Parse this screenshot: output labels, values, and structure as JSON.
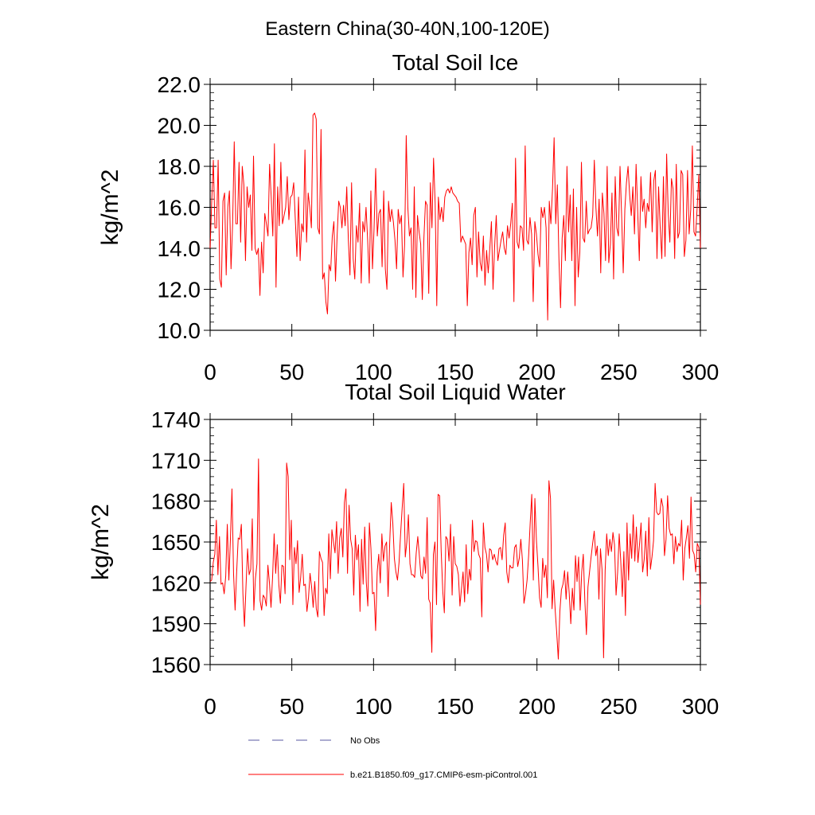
{
  "page_title": "Eastern China(30-40N,100-120E)",
  "chart_data": [
    {
      "type": "line",
      "title": "Total Soil Ice",
      "xlabel": "",
      "ylabel": "kg/m^2",
      "xlim": [
        0,
        300
      ],
      "ylim": [
        10,
        22
      ],
      "xticks": [
        0,
        50,
        100,
        150,
        200,
        250,
        300
      ],
      "xtick_labels": [
        "0",
        "50",
        "100",
        "150",
        "200",
        "250",
        "300"
      ],
      "yticks": [
        10,
        12,
        14,
        16,
        18,
        20,
        22
      ],
      "ytick_labels": [
        "10.0",
        "12.0",
        "14.0",
        "16.0",
        "18.0",
        "20.0",
        "22.0"
      ],
      "series": [
        {
          "name": "b.e21.B1850.f09_g17.CMIP6-esm-piControl.001",
          "color": "#ff0000",
          "values": [
            14.0,
            16.3,
            18.3,
            15.0,
            15.0,
            18.3,
            12.5,
            12.1,
            16.3,
            16.7,
            12.7,
            16.0,
            16.8,
            13.0,
            15.2,
            19.2,
            15.2,
            15.2,
            18.2,
            14.3,
            18.0,
            17.1,
            13.4,
            17.0,
            16.0,
            16.6,
            13.9,
            18.5,
            14.0,
            13.7,
            14.0,
            11.7,
            14.3,
            12.8,
            15.7,
            15.2,
            14.6,
            18.1,
            16.5,
            14.6,
            19.1,
            12.1,
            17.0,
            15.1,
            18.2,
            15.2,
            15.6,
            16.0,
            17.5,
            15.4,
            16.5,
            16.6,
            17.2,
            15.4,
            13.6,
            16.5,
            13.4,
            15.2,
            14.8,
            18.8,
            14.3,
            16.7,
            16.0,
            15.0,
            20.5,
            20.6,
            20.3,
            15.0,
            14.7,
            19.8,
            12.5,
            12.8,
            11.4,
            10.8,
            13.2,
            12.9,
            14.6,
            15.3,
            12.4,
            14.6,
            16.3,
            16.0,
            15.0,
            16.1,
            15.1,
            17.0,
            14.4,
            12.7,
            17.2,
            13.5,
            12.5,
            15.1,
            14.3,
            16.2,
            12.3,
            15.3,
            14.8,
            16.0,
            14.4,
            12.3,
            16.8,
            13.0,
            15.0,
            17.9,
            14.6,
            15.7,
            15.9,
            13.1,
            16.8,
            13.0,
            12.0,
            16.3,
            15.3,
            15.9,
            15.3,
            14.4,
            13.0,
            15.9,
            15.2,
            15.6,
            12.6,
            14.2,
            19.5,
            16.0,
            14.6,
            15.0,
            12.0,
            17.0,
            11.6,
            15.6,
            14.8,
            14.2,
            11.5,
            14.5,
            16.3,
            16.1,
            11.8,
            17.2,
            15.0,
            18.4,
            16.2,
            11.2,
            16.5,
            15.4,
            16.0,
            15.3,
            16.5,
            16.8,
            16.9,
            16.7,
            17.0,
            16.7,
            16.6,
            16.5,
            16.3,
            16.2,
            14.3,
            14.6,
            14.4,
            14.2,
            11.2,
            13.8,
            14.5,
            13.2,
            15.6,
            16.0,
            12.6,
            14.8,
            13.3,
            12.9,
            14.6,
            12.2,
            13.9,
            12.8,
            14.0,
            15.3,
            12.0,
            14.1,
            15.6,
            13.4,
            13.9,
            14.4,
            14.8,
            14.0,
            13.7,
            15.1,
            14.5,
            15.2,
            16.2,
            11.4,
            18.4,
            14.3,
            14.0,
            15.1,
            15.0,
            13.9,
            19.0,
            14.4,
            14.2,
            15.5,
            14.7,
            11.4,
            15.3,
            14.7,
            13.7,
            13.1,
            16.0,
            15.5,
            16.0,
            15.0,
            10.5,
            16.3,
            15.2,
            16.9,
            19.4,
            15.2,
            17.1,
            13.5,
            11.1,
            14.5,
            15.6,
            13.4,
            18.0,
            14.8,
            16.6,
            13.4,
            16.9,
            11.2,
            16.0,
            12.6,
            13.8,
            18.2,
            14.5,
            14.3,
            16.3,
            14.7,
            14.9,
            15.0,
            15.6,
            18.3,
            16.0,
            14.6,
            16.4,
            12.8,
            16.7,
            15.7,
            13.4,
            18.0,
            13.3,
            14.2,
            16.7,
            12.5,
            17.5,
            15.0,
            14.6,
            18.0,
            15.6,
            12.8,
            15.9,
            17.2,
            18.0,
            16.6,
            15.6,
            17.0,
            14.7,
            18.1,
            15.8,
            13.4,
            17.5,
            15.8,
            16.4,
            15.0,
            16.2,
            15.8,
            17.7,
            14.8,
            17.3,
            17.8,
            13.5,
            17.0,
            15.0,
            13.5,
            17.5,
            13.6,
            18.6,
            15.7,
            14.3,
            17.4,
            16.9,
            13.5,
            18.1,
            14.5,
            14.8,
            17.8,
            17.6,
            13.6,
            14.4,
            17.8,
            14.7,
            15.9,
            19.0,
            14.8,
            14.6,
            16.0,
            17.6,
            14.0
          ]
        }
      ]
    },
    {
      "type": "line",
      "title": "Total Soil Liquid Water",
      "xlabel": "",
      "ylabel": "kg/m^2",
      "xlim": [
        0,
        300
      ],
      "ylim": [
        1560,
        1740
      ],
      "xticks": [
        0,
        50,
        100,
        150,
        200,
        250,
        300
      ],
      "xtick_labels": [
        "0",
        "50",
        "100",
        "150",
        "200",
        "250",
        "300"
      ],
      "yticks": [
        1560,
        1590,
        1620,
        1650,
        1680,
        1710,
        1740
      ],
      "ytick_labels": [
        "1560",
        "1590",
        "1620",
        "1650",
        "1680",
        "1710",
        "1740"
      ],
      "series": [
        {
          "name": "b.e21.B1850.f09_g17.CMIP6-esm-piControl.001",
          "color": "#ff0000",
          "values": [
            1621,
            1622,
            1635,
            1641,
            1666,
            1626,
            1654,
            1619,
            1620,
            1612,
            1625,
            1663,
            1622,
            1652,
            1689,
            1627,
            1600,
            1628,
            1653,
            1652,
            1663,
            1612,
            1588,
            1618,
            1645,
            1626,
            1630,
            1667,
            1600,
            1623,
            1634,
            1711,
            1607,
            1600,
            1611,
            1609,
            1603,
            1633,
            1620,
            1602,
            1624,
            1656,
            1627,
            1648,
            1619,
            1605,
            1633,
            1632,
            1612,
            1708,
            1698,
            1637,
            1666,
            1604,
            1646,
            1634,
            1651,
            1613,
            1624,
            1641,
            1618,
            1619,
            1599,
            1609,
            1627,
            1617,
            1602,
            1621,
            1601,
            1595,
            1643,
            1638,
            1635,
            1596,
            1616,
            1612,
            1656,
            1623,
            1659,
            1650,
            1642,
            1665,
            1627,
            1653,
            1660,
            1639,
            1679,
            1689,
            1627,
            1677,
            1652,
            1645,
            1611,
            1655,
            1637,
            1648,
            1599,
            1652,
            1619,
            1661,
            1621,
            1603,
            1664,
            1645,
            1612,
            1613,
            1585,
            1628,
            1641,
            1620,
            1656,
            1636,
            1647,
            1650,
            1610,
            1649,
            1679,
            1664,
            1638,
            1628,
            1622,
            1635,
            1656,
            1675,
            1693,
            1639,
            1650,
            1670,
            1634,
            1626,
            1626,
            1624,
            1642,
            1654,
            1640,
            1625,
            1623,
            1639,
            1627,
            1668,
            1608,
            1605,
            1569,
            1641,
            1650,
            1604,
            1685,
            1684,
            1643,
            1614,
            1598,
            1654,
            1652,
            1636,
            1663,
            1611,
            1654,
            1634,
            1632,
            1626,
            1603,
            1616,
            1628,
            1606,
            1648,
            1612,
            1630,
            1622,
            1666,
            1643,
            1651,
            1650,
            1641,
            1638,
            1595,
            1664,
            1646,
            1641,
            1628,
            1645,
            1644,
            1637,
            1641,
            1636,
            1633,
            1645,
            1646,
            1637,
            1655,
            1664,
            1628,
            1620,
            1633,
            1631,
            1631,
            1646,
            1648,
            1632,
            1638,
            1652,
            1637,
            1605,
            1612,
            1622,
            1640,
            1664,
            1685,
            1622,
            1682,
            1651,
            1632,
            1609,
            1602,
            1638,
            1624,
            1633,
            1609,
            1695,
            1682,
            1601,
            1622,
            1600,
            1583,
            1564,
            1599,
            1615,
            1619,
            1629,
            1608,
            1628,
            1612,
            1590,
            1616,
            1600,
            1640,
            1621,
            1639,
            1600,
            1628,
            1641,
            1607,
            1582,
            1617,
            1628,
            1639,
            1649,
            1658,
            1640,
            1647,
            1608,
            1645,
            1630,
            1565,
            1629,
            1656,
            1640,
            1652,
            1643,
            1657,
            1648,
            1611,
            1628,
            1656,
            1636,
            1610,
            1643,
            1596,
            1664,
            1622,
            1656,
            1638,
            1670,
            1636,
            1661,
            1635,
            1648,
            1664,
            1628,
            1637,
            1658,
            1625,
            1668,
            1630,
            1639,
            1651,
            1693,
            1672,
            1670,
            1671,
            1682,
            1676,
            1640,
            1652,
            1684,
            1660,
            1655,
            1656,
            1634,
            1654,
            1643,
            1649,
            1647,
            1666,
            1622,
            1645,
            1653,
            1662,
            1638,
            1683,
            1644,
            1641,
            1628,
            1649,
            1646,
            1604
          ]
        }
      ]
    }
  ],
  "legend": [
    {
      "label": "No Obs",
      "color": "#5a5aa0",
      "style": "dashed"
    },
    {
      "label": "b.e21.B1850.f09_g17.CMIP6-esm-piControl.001",
      "color": "#ff0000",
      "style": "solid"
    }
  ]
}
